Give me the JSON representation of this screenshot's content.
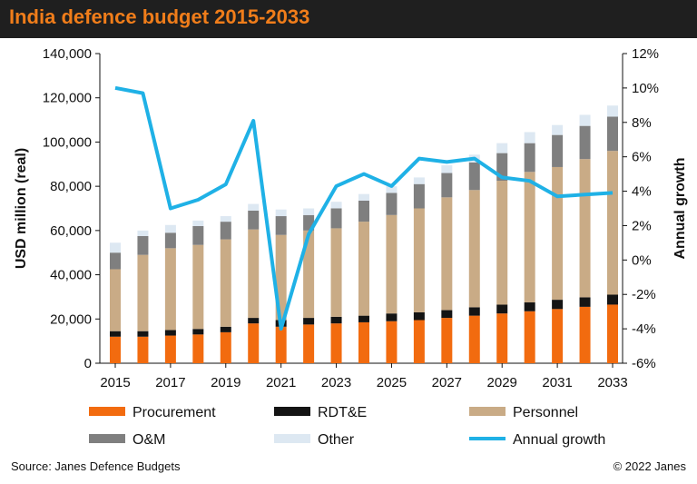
{
  "header": {
    "title": "India defence budget 2015-2033"
  },
  "footer": {
    "source": "Source: Janes Defence Budgets",
    "copyright": "© 2022 Janes"
  },
  "chart_data": {
    "type": "bar",
    "stacked": true,
    "title": "India defence budget 2015-2033",
    "ylabel": "USD million (real)",
    "y2label": "Annual growth",
    "ylim": [
      0,
      140000
    ],
    "y2lim": [
      -6,
      12
    ],
    "yticks": [
      "0",
      "20,000",
      "40,000",
      "60,000",
      "80,000",
      "100,000",
      "120,000",
      "140,000"
    ],
    "y2ticks": [
      "-6%",
      "-4%",
      "-2%",
      "0%",
      "2%",
      "4%",
      "6%",
      "8%",
      "10%",
      "12%"
    ],
    "categories": [
      "2015",
      "2016",
      "2017",
      "2018",
      "2019",
      "2020",
      "2021",
      "2022",
      "2023",
      "2024",
      "2025",
      "2026",
      "2027",
      "2028",
      "2029",
      "2030",
      "2031",
      "2032",
      "2033"
    ],
    "xtick_labels": [
      "2015",
      "2017",
      "2019",
      "2021",
      "2023",
      "2025",
      "2027",
      "2029",
      "2031",
      "2033"
    ],
    "colors": {
      "Procurement": "#f26b0f",
      "RDT&E": "#141414",
      "Personnel": "#c9ab86",
      "O&M": "#7f7f7f",
      "Other": "#dde8f2",
      "Annual growth": "#1fb1e6"
    },
    "series": [
      {
        "name": "Procurement",
        "values": [
          12000,
          12000,
          12500,
          13000,
          14000,
          18000,
          16500,
          17500,
          18000,
          18500,
          19000,
          19500,
          20500,
          21500,
          22500,
          23500,
          24500,
          25500,
          26500
        ]
      },
      {
        "name": "RDT&E",
        "values": [
          2500,
          2500,
          2500,
          2500,
          2500,
          2500,
          3000,
          3000,
          3000,
          3000,
          3500,
          3500,
          3500,
          3800,
          4000,
          4000,
          4200,
          4300,
          4500
        ]
      },
      {
        "name": "Personnel",
        "values": [
          28000,
          34500,
          37000,
          38000,
          39500,
          40000,
          38500,
          39500,
          40000,
          42500,
          44500,
          47000,
          51000,
          53000,
          56000,
          59000,
          60000,
          62500,
          65000
        ]
      },
      {
        "name": "O&M",
        "values": [
          7500,
          8500,
          7000,
          8500,
          8000,
          8500,
          8500,
          7000,
          9000,
          9500,
          10000,
          11000,
          11000,
          12500,
          12500,
          13000,
          14500,
          15000,
          15500
        ]
      },
      {
        "name": "Other",
        "values": [
          4500,
          2500,
          3500,
          2500,
          2500,
          3000,
          3000,
          3000,
          3000,
          3000,
          3000,
          3000,
          3500,
          3500,
          4500,
          5000,
          4500,
          5000,
          5000
        ]
      },
      {
        "name": "Annual growth",
        "axis": "right",
        "type": "line",
        "values": [
          10.0,
          9.7,
          3.0,
          3.5,
          4.4,
          8.1,
          -4.0,
          1.5,
          4.3,
          5.0,
          4.3,
          5.9,
          5.7,
          5.9,
          4.8,
          4.6,
          3.7,
          3.8,
          3.9
        ]
      }
    ],
    "legend": {
      "placement": "bottom",
      "items": [
        "Procurement",
        "RDT&E",
        "Personnel",
        "O&M",
        "Other",
        "Annual growth"
      ]
    }
  }
}
